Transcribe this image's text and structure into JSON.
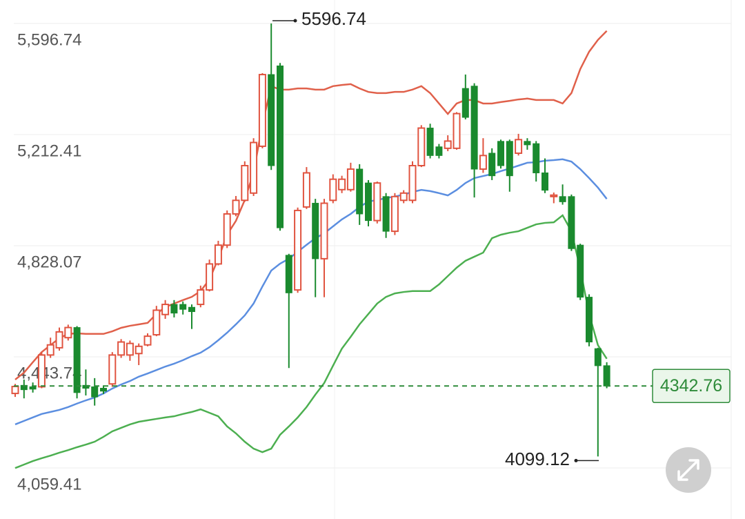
{
  "chart_data": {
    "type": "candlestick",
    "ylim": [
      3959.1,
      5677.95
    ],
    "yticks": [
      {
        "value": 5596.74,
        "label": "5,596.74"
      },
      {
        "value": 5212.41,
        "label": "5,212.41"
      },
      {
        "value": 4828.07,
        "label": "4,828.07"
      },
      {
        "value": 4443.74,
        "label": "4,443.74"
      },
      {
        "value": 4059.41,
        "label": "4,059.41"
      }
    ],
    "grid": true,
    "up_color": "#e0533f",
    "down_color": "#1a8a2e",
    "candles": {
      "open": [
        4317,
        4345,
        4340,
        4340,
        4450,
        4475,
        4510,
        4545,
        4345,
        4340,
        4335,
        4350,
        4450,
        4450,
        4455,
        4485,
        4520,
        4590,
        4625,
        4625,
        4615,
        4625,
        4675,
        4765,
        4830,
        4938,
        4985,
        5010,
        5172,
        5420,
        5450,
        4795,
        4675,
        4962,
        4975,
        4783,
        4985,
        5022,
        5022,
        5093,
        5045,
        4915,
        4998,
        4878,
        4985,
        4985,
        5105,
        5235,
        5170,
        5165,
        5165,
        5372,
        5380,
        5093,
        5148,
        5189,
        5189,
        5148,
        5189,
        5181,
        5080,
        4998,
        4998,
        4998,
        4830,
        4650,
        4472,
        4413
      ],
      "high": [
        4350,
        4365,
        4355,
        4460,
        4510,
        4545,
        4555,
        4550,
        4400,
        4370,
        4345,
        4460,
        4505,
        4500,
        4490,
        4525,
        4620,
        4640,
        4640,
        4635,
        4625,
        4690,
        4780,
        4845,
        4950,
        5000,
        5120,
        5200,
        5425,
        5596.74,
        5460,
        4800,
        4960,
        5100,
        4990,
        4990,
        5075,
        5070,
        5115,
        5110,
        5055,
        5050,
        5010,
        5010,
        5020,
        5120,
        5245,
        5250,
        5180,
        5210,
        5290,
        5420,
        5390,
        5200,
        5165,
        5195,
        5195,
        5215,
        5200,
        5190,
        5130,
        5012,
        5040,
        5005,
        4835,
        4660,
        4475,
        4425
      ],
      "low": [
        4305,
        4300,
        4320,
        4335,
        4440,
        4465,
        4500,
        4300,
        4310,
        4275,
        4315,
        4340,
        4440,
        4430,
        4415,
        4480,
        4515,
        4575,
        4580,
        4590,
        4540,
        4615,
        4670,
        4760,
        4820,
        4930,
        4980,
        5000,
        5165,
        5090,
        4880,
        4405,
        4665,
        4955,
        4650,
        4650,
        4975,
        5010,
        5015,
        4900,
        4895,
        4905,
        4855,
        4865,
        4975,
        4975,
        5100,
        5130,
        5130,
        5155,
        5160,
        5265,
        4995,
        5080,
        5055,
        5095,
        5015,
        5140,
        5160,
        5050,
        5010,
        4975,
        4970,
        4810,
        4640,
        4480,
        4099.12,
        4335
      ],
      "close": [
        4341,
        4330,
        4332,
        4450,
        4485,
        4530,
        4545,
        4320,
        4335,
        4305,
        4325,
        4450,
        4495,
        4490,
        4480,
        4515,
        4605,
        4625,
        4595,
        4608,
        4600,
        4675,
        4765,
        4830,
        4938,
        4985,
        5105,
        5185,
        5420,
        5105,
        4890,
        4665,
        4950,
        5080,
        4783,
        4975,
        5058,
        5058,
        5093,
        4938,
        4915,
        5045,
        4878,
        4998,
        5010,
        5105,
        5235,
        5140,
        5140,
        5190,
        5285,
        5272,
        5093,
        5140,
        5070,
        5105,
        5070,
        5195,
        5177,
        5080,
        5020,
        5003,
        4980,
        4818,
        4650,
        4495,
        4413,
        4342.76
      ]
    },
    "bands": {
      "upper": {
        "color": "#e0604a",
        "values": [
          4365,
          4389,
          4425,
          4460,
          4484,
          4508,
          4523,
          4525,
          4523,
          4523,
          4523,
          4532,
          4544,
          4551,
          4556,
          4561,
          4592,
          4616,
          4628,
          4640,
          4651,
          4671,
          4711,
          4783,
          4866,
          4914,
          4986,
          5081,
          5248,
          5380,
          5368,
          5368,
          5372,
          5372,
          5368,
          5368,
          5380,
          5384,
          5387,
          5372,
          5360,
          5356,
          5356,
          5360,
          5360,
          5368,
          5380,
          5356,
          5320,
          5284,
          5320,
          5332,
          5332,
          5320,
          5320,
          5325,
          5329,
          5334,
          5337,
          5332,
          5332,
          5332,
          5320,
          5356,
          5439,
          5499,
          5540,
          5571
        ]
      },
      "middle": {
        "color": "#5b8ee0",
        "values": [
          4210,
          4222,
          4234,
          4246,
          4253,
          4260,
          4270,
          4282,
          4293,
          4303,
          4317,
          4334,
          4348,
          4360,
          4375,
          4386,
          4398,
          4410,
          4420,
          4432,
          4446,
          4458,
          4477,
          4501,
          4527,
          4556,
          4587,
          4628,
          4687,
          4742,
          4766,
          4783,
          4807,
          4831,
          4854,
          4871,
          4895,
          4919,
          4938,
          4962,
          4981,
          4986,
          4993,
          4998,
          5005,
          5014,
          5021,
          5017,
          5010,
          5002,
          5021,
          5045,
          5062,
          5069,
          5076,
          5086,
          5095,
          5105,
          5115,
          5117,
          5122,
          5124,
          5127,
          5119,
          5093,
          5062,
          5029,
          4990
        ]
      },
      "lower": {
        "color": "#4caf50",
        "values": [
          4059,
          4071,
          4083,
          4093,
          4102,
          4112,
          4121,
          4131,
          4140,
          4150,
          4167,
          4186,
          4198,
          4210,
          4219,
          4224,
          4229,
          4234,
          4238,
          4246,
          4253,
          4262,
          4250,
          4238,
          4203,
          4179,
          4150,
          4126,
          4114,
          4126,
          4174,
          4203,
          4234,
          4270,
          4313,
          4353,
          4413,
          4472,
          4513,
          4556,
          4592,
          4628,
          4651,
          4663,
          4668,
          4671,
          4671,
          4671,
          4694,
          4723,
          4752,
          4776,
          4790,
          4804,
          4854,
          4866,
          4873,
          4878,
          4890,
          4902,
          4907,
          4909,
          4933,
          4878,
          4747,
          4592,
          4484,
          4437
        ]
      }
    },
    "annotations": {
      "high": {
        "value": 5596.74,
        "label": "5596.74"
      },
      "low": {
        "value": 4099.12,
        "label": "4099.12"
      },
      "last": {
        "value": 4342.76,
        "label": "4342.76",
        "color": "#2e8b3a"
      }
    }
  }
}
